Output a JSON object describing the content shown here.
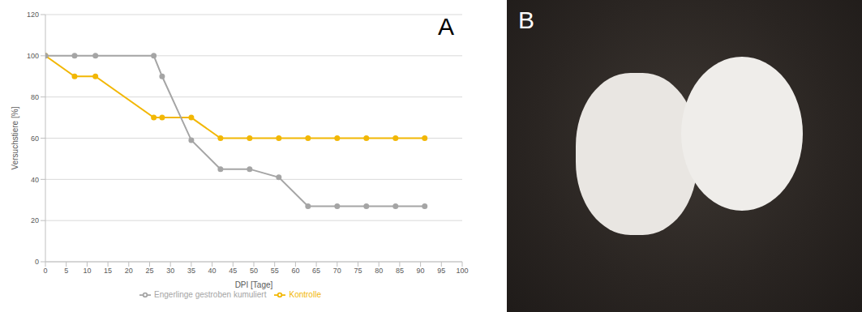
{
  "chart_data": {
    "type": "line",
    "title": "A",
    "x_label": "DPI [Tage]",
    "y_label": "Versuchstiere [%]",
    "x": [
      0,
      7,
      12,
      26,
      28,
      35,
      42,
      49,
      56,
      63,
      70,
      77,
      84,
      91
    ],
    "series": [
      {
        "name": "Kontrolle",
        "color": "#f2b705",
        "marker": "circle",
        "values": [
          100,
          90,
          90,
          70,
          70,
          70,
          60,
          60,
          60,
          60,
          60,
          60,
          60,
          60
        ]
      },
      {
        "name": "Engerlinge gestroben kumuliert",
        "color": "#a5a5a5",
        "marker": "circle",
        "values": [
          100,
          100,
          100,
          100,
          90,
          59,
          45,
          45,
          41,
          27,
          27,
          27,
          27,
          27
        ]
      }
    ],
    "xlim": [
      0,
      100
    ],
    "xticks": [
      0,
      5,
      10,
      15,
      20,
      25,
      30,
      35,
      40,
      45,
      50,
      55,
      60,
      65,
      70,
      75,
      80,
      85,
      90,
      95,
      100
    ],
    "ylim": [
      0,
      120
    ],
    "yticks": [
      0,
      20,
      40,
      60,
      80,
      100,
      120
    ],
    "grid": true,
    "legend": "bottom"
  },
  "image_panel": {
    "label": "B"
  }
}
